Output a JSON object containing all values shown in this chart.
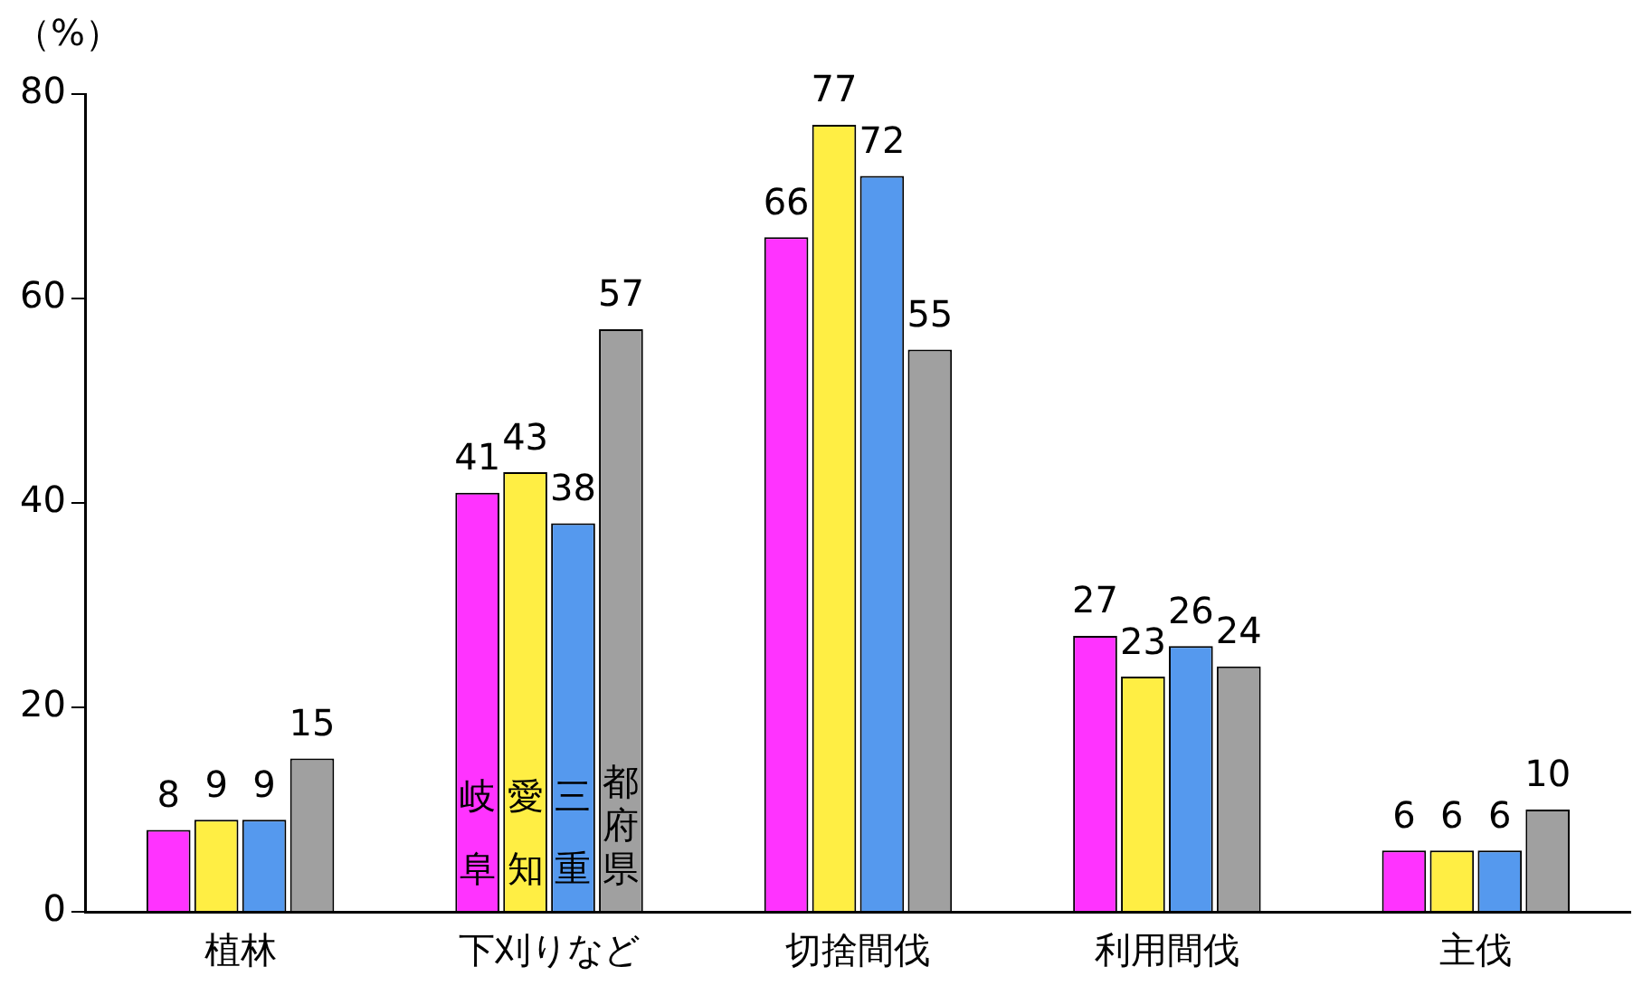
{
  "chart_data": {
    "type": "bar",
    "ylabel": "（%）",
    "categories": [
      "植林",
      "下刈りなど",
      "切捨間伐",
      "利用間伐",
      "主伐"
    ],
    "series": [
      {
        "name": "岐阜",
        "color": "#ff33ff",
        "values": [
          8,
          41,
          66,
          27,
          6
        ]
      },
      {
        "name": "愛知",
        "color": "#ffee44",
        "values": [
          9,
          43,
          77,
          23,
          6
        ]
      },
      {
        "name": "三重",
        "color": "#5599ee",
        "values": [
          9,
          38,
          72,
          26,
          6
        ]
      },
      {
        "name": "都府県",
        "color": "#a0a0a0",
        "values": [
          15,
          57,
          55,
          24,
          10
        ]
      }
    ],
    "ylim": [
      0,
      80
    ],
    "yticks": [
      0,
      20,
      40,
      60,
      80
    ],
    "grid": false,
    "legend": false,
    "data_labels": true
  }
}
